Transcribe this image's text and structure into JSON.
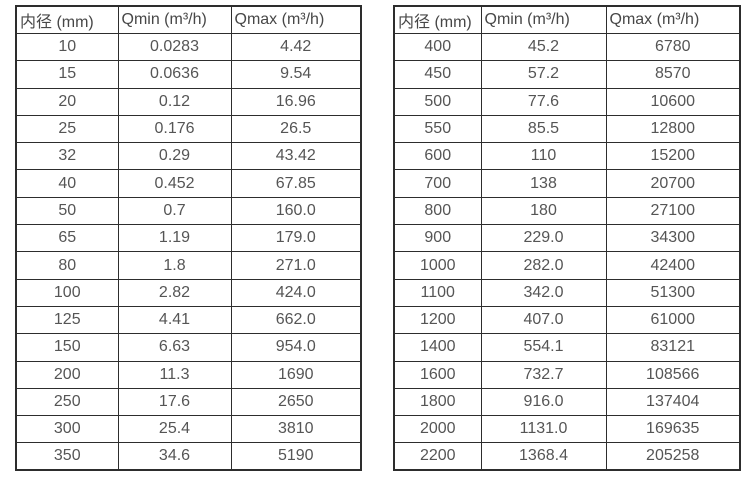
{
  "page": {
    "background_color": "#ffffff",
    "text_color": "#4a4a4a",
    "border_color": "#2d2d2d",
    "description": "Flow meter diameter specification tables: minimum and maximum flow rate by inner diameter"
  },
  "chart_data": [
    {
      "type": "table",
      "title": "",
      "columns": [
        "内径 (mm)",
        "Qmin (m³/h)",
        "Qmax (m³/h)"
      ],
      "rows": [
        [
          "10",
          "0.0283",
          "4.42"
        ],
        [
          "15",
          "0.0636",
          "9.54"
        ],
        [
          "20",
          "0.12",
          "16.96"
        ],
        [
          "25",
          "0.176",
          "26.5"
        ],
        [
          "32",
          "0.29",
          "43.42"
        ],
        [
          "40",
          "0.452",
          "67.85"
        ],
        [
          "50",
          "0.7",
          "160.0"
        ],
        [
          "65",
          "1.19",
          "179.0"
        ],
        [
          "80",
          "1.8",
          "271.0"
        ],
        [
          "100",
          "2.82",
          "424.0"
        ],
        [
          "125",
          "4.41",
          "662.0"
        ],
        [
          "150",
          "6.63",
          "954.0"
        ],
        [
          "200",
          "11.3",
          "1690"
        ],
        [
          "250",
          "17.6",
          "2650"
        ],
        [
          "300",
          "25.4",
          "3810"
        ],
        [
          "350",
          "34.6",
          "5190"
        ]
      ]
    },
    {
      "type": "table",
      "title": "",
      "columns": [
        "内径 (mm)",
        "Qmin (m³/h)",
        "Qmax (m³/h)"
      ],
      "rows": [
        [
          "400",
          "45.2",
          "6780"
        ],
        [
          "450",
          "57.2",
          "8570"
        ],
        [
          "500",
          "77.6",
          "10600"
        ],
        [
          "550",
          "85.5",
          "12800"
        ],
        [
          "600",
          "110",
          "15200"
        ],
        [
          "700",
          "138",
          "20700"
        ],
        [
          "800",
          "180",
          "27100"
        ],
        [
          "900",
          "229.0",
          "34300"
        ],
        [
          "1000",
          "282.0",
          "42400"
        ],
        [
          "1100",
          "342.0",
          "51300"
        ],
        [
          "1200",
          "407.0",
          "61000"
        ],
        [
          "1400",
          "554.1",
          "83121"
        ],
        [
          "1600",
          "732.7",
          "108566"
        ],
        [
          "1800",
          "916.0",
          "137404"
        ],
        [
          "2000",
          "1131.0",
          "169635"
        ],
        [
          "2200",
          "1368.4",
          "205258"
        ]
      ]
    }
  ]
}
